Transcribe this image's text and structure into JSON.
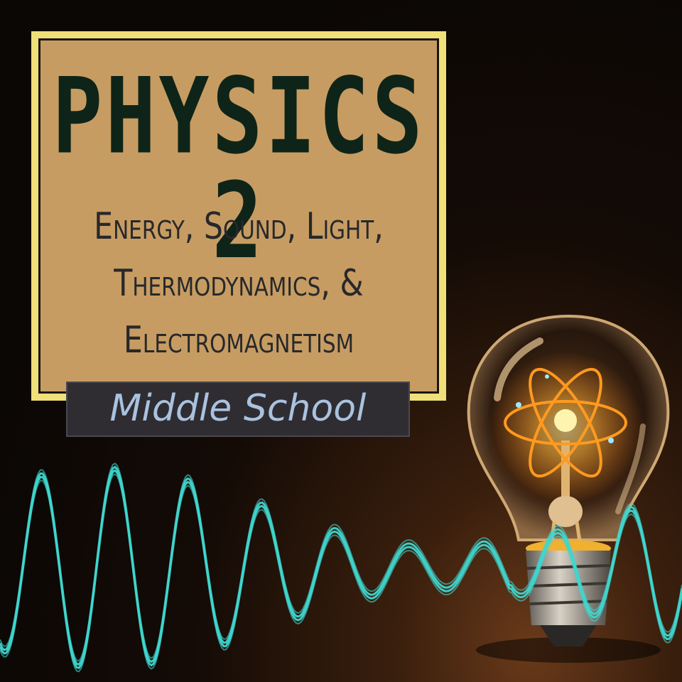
{
  "cover": {
    "title": "PHYSICS 2",
    "subtitle_lines": [
      "Energy, Sound, Light,",
      "Thermodynamics, &",
      "Electromagnetism"
    ],
    "badge": "Middle School"
  },
  "colors": {
    "frame": "#efe07a",
    "panel": "#c79c62",
    "title_text": "#0f2418",
    "badge_bg": "#2f2d32",
    "badge_text": "#a9c2df",
    "wave": "#3fd6cf",
    "bulb_glow": "#ffb338"
  },
  "icons": [
    "light-bulb-icon",
    "atom-icon",
    "sound-wave-icon"
  ]
}
